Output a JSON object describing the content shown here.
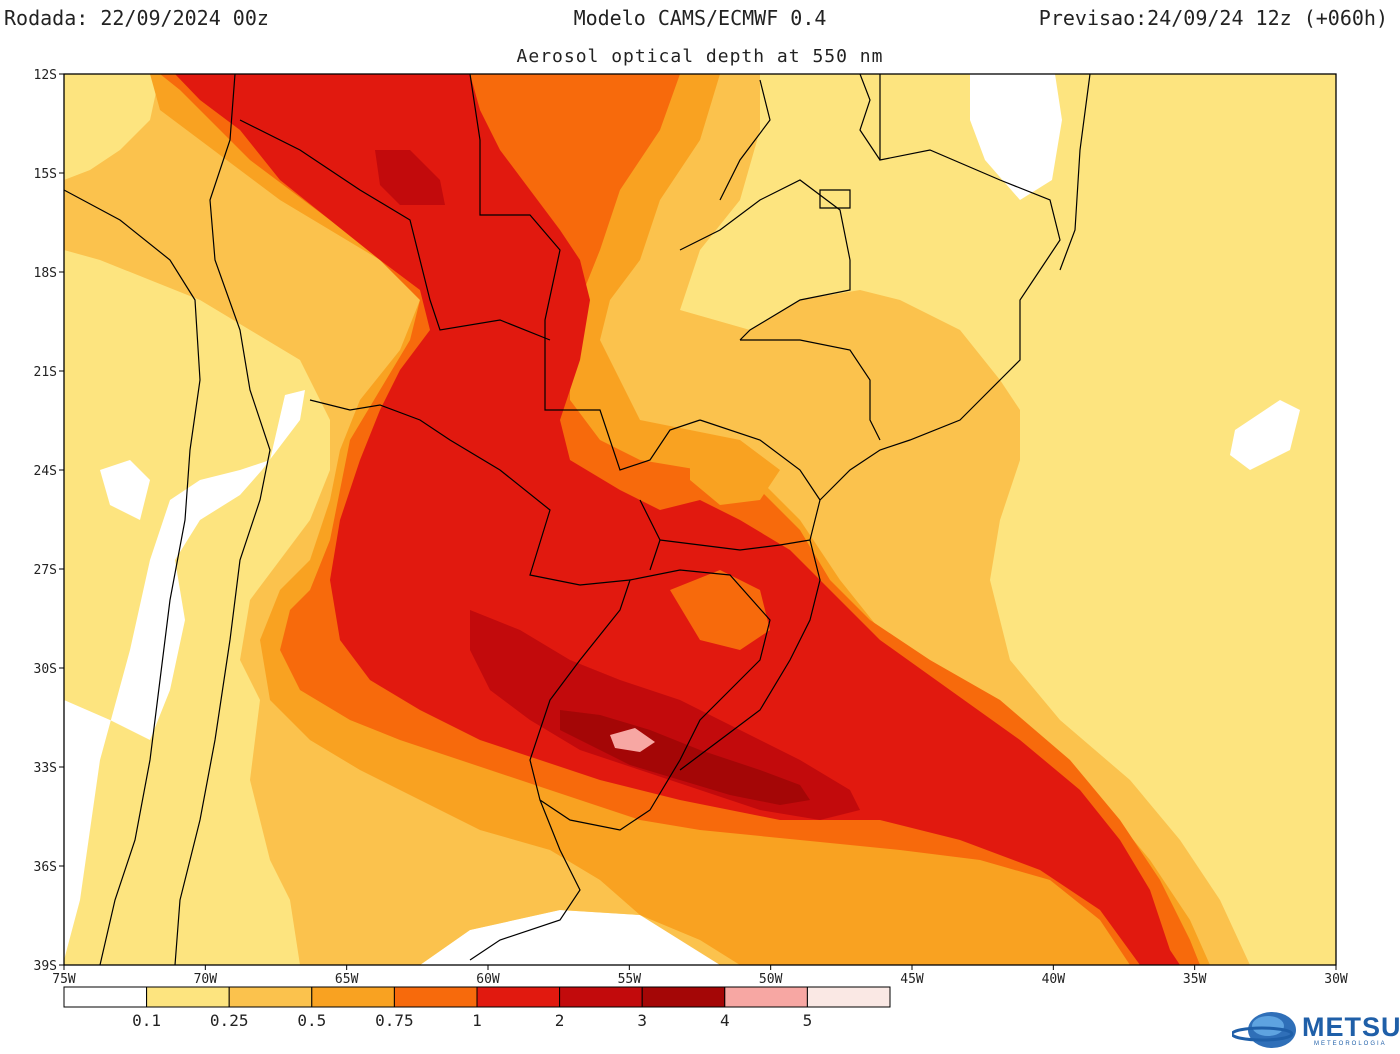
{
  "header": {
    "run": "Rodada: 22/09/2024 00z",
    "model": "Modelo CAMS/ECMWF 0.4",
    "forecast": "Previsao:24/09/24 12z (+060h)",
    "subtitle": "Aerosol optical depth at 550 nm"
  },
  "map": {
    "lat_labels": [
      "12S",
      "15S",
      "18S",
      "21S",
      "24S",
      "27S",
      "30S",
      "33S",
      "36S",
      "39S"
    ],
    "lon_labels": [
      "75W",
      "70W",
      "65W",
      "60W",
      "55W",
      "50W",
      "45W",
      "40W",
      "35W",
      "30W"
    ],
    "extent": {
      "lon": [
        -75,
        -30
      ],
      "lat": [
        -39,
        -12
      ]
    }
  },
  "legend": {
    "labels": [
      "0.1",
      "0.25",
      "0.5",
      "0.75",
      "1",
      "2",
      "3",
      "4",
      "5"
    ],
    "colors": [
      "#ffffff",
      "#fde47f",
      "#fbc24d",
      "#f9a221",
      "#f76a0c",
      "#e1190f",
      "#c20a0c",
      "#a40606",
      "#f7a7a3",
      "#fae8e4"
    ]
  },
  "logo": {
    "name": "METSUL",
    "sub": "METEOROLOGIA"
  }
}
